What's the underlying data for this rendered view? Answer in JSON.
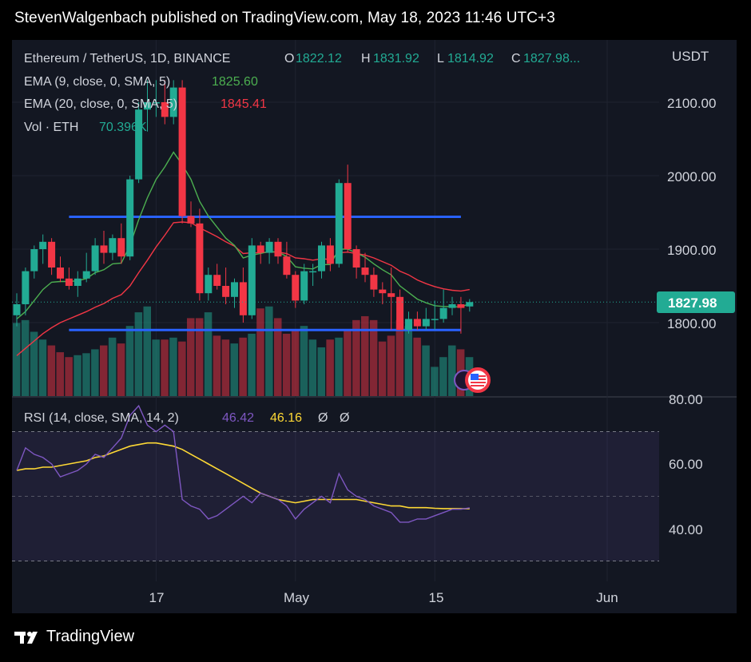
{
  "header": {
    "text": "StevenWalgenbach published on TradingView.com, May 18, 2023 11:46 UTC+3"
  },
  "legend": {
    "symbol": "Ethereum / TetherUS, 1D, BINANCE",
    "o_label": "O",
    "o_value": "1822.12",
    "h_label": "H",
    "h_value": "1831.92",
    "l_label": "L",
    "l_value": "1814.92",
    "c_label": "C",
    "c_value": "1827.98...",
    "ema9_label": "EMA (9, close, 0, SMA, 5)",
    "ema9_value": "1825.60",
    "ema20_label": "EMA (20, close, 0, SMA, 5)",
    "ema20_value": "1845.41",
    "vol_label": "Vol · ETH",
    "vol_value": "70.396K"
  },
  "rsi_legend": {
    "label": "RSI (14, close, SMA, 14, 2)",
    "rsi_value": "46.42",
    "sma_value": "46.16",
    "empty1": "Ø",
    "empty2": "Ø"
  },
  "axis": {
    "currency": "USDT",
    "price_ticks": [
      "2100.00",
      "2000.00",
      "1900.00",
      "1800.00"
    ],
    "price_label": "1827.98",
    "rsi_ticks": [
      "80.00",
      "60.00",
      "40.00"
    ],
    "x_ticks": [
      "17",
      "May",
      "15",
      "Jun"
    ]
  },
  "brand": {
    "name": "TradingView"
  },
  "colors": {
    "up": "#22ab94",
    "down": "#f23645",
    "ema9": "#4caf50",
    "ema20": "#f23645",
    "rsi": "#7e57c2",
    "rsi_sma": "#fdd835",
    "support": "#2962ff",
    "bg": "#131722"
  },
  "chart_data": [
    {
      "type": "candlestick",
      "title": "Ethereum / TetherUS, 1D, BINANCE",
      "ylim": [
        1730,
        2190
      ],
      "x_labels": [
        "17",
        "May",
        "15",
        "Jun"
      ],
      "candles": [
        {
          "o": 1810,
          "h": 1840,
          "l": 1795,
          "c": 1825
        },
        {
          "o": 1825,
          "h": 1875,
          "l": 1810,
          "c": 1870
        },
        {
          "o": 1870,
          "h": 1905,
          "l": 1860,
          "c": 1900
        },
        {
          "o": 1900,
          "h": 1920,
          "l": 1880,
          "c": 1910
        },
        {
          "o": 1910,
          "h": 1915,
          "l": 1865,
          "c": 1875
        },
        {
          "o": 1875,
          "h": 1890,
          "l": 1855,
          "c": 1860
        },
        {
          "o": 1860,
          "h": 1875,
          "l": 1845,
          "c": 1850
        },
        {
          "o": 1850,
          "h": 1870,
          "l": 1835,
          "c": 1860
        },
        {
          "o": 1860,
          "h": 1895,
          "l": 1855,
          "c": 1870
        },
        {
          "o": 1870,
          "h": 1915,
          "l": 1865,
          "c": 1905
        },
        {
          "o": 1905,
          "h": 1925,
          "l": 1880,
          "c": 1895
        },
        {
          "o": 1895,
          "h": 1920,
          "l": 1885,
          "c": 1915
        },
        {
          "o": 1915,
          "h": 1935,
          "l": 1880,
          "c": 1890
        },
        {
          "o": 1890,
          "h": 2000,
          "l": 1885,
          "c": 1995
        },
        {
          "o": 1995,
          "h": 2100,
          "l": 1990,
          "c": 2090
        },
        {
          "o": 2090,
          "h": 2130,
          "l": 2060,
          "c": 2100
        },
        {
          "o": 2100,
          "h": 2130,
          "l": 2080,
          "c": 2100
        },
        {
          "o": 2100,
          "h": 2130,
          "l": 2070,
          "c": 2080
        },
        {
          "o": 2080,
          "h": 2130,
          "l": 2070,
          "c": 2120
        },
        {
          "o": 2120,
          "h": 2130,
          "l": 1935,
          "c": 1945
        },
        {
          "o": 1945,
          "h": 1965,
          "l": 1930,
          "c": 1935
        },
        {
          "o": 1935,
          "h": 1955,
          "l": 1830,
          "c": 1840
        },
        {
          "o": 1840,
          "h": 1875,
          "l": 1830,
          "c": 1865
        },
        {
          "o": 1865,
          "h": 1880,
          "l": 1845,
          "c": 1850
        },
        {
          "o": 1850,
          "h": 1875,
          "l": 1825,
          "c": 1835
        },
        {
          "o": 1835,
          "h": 1860,
          "l": 1820,
          "c": 1855
        },
        {
          "o": 1855,
          "h": 1875,
          "l": 1800,
          "c": 1810
        },
        {
          "o": 1810,
          "h": 1915,
          "l": 1805,
          "c": 1905
        },
        {
          "o": 1905,
          "h": 1910,
          "l": 1880,
          "c": 1895
        },
        {
          "o": 1895,
          "h": 1915,
          "l": 1880,
          "c": 1910
        },
        {
          "o": 1910,
          "h": 1915,
          "l": 1880,
          "c": 1890
        },
        {
          "o": 1890,
          "h": 1910,
          "l": 1860,
          "c": 1865
        },
        {
          "o": 1865,
          "h": 1870,
          "l": 1820,
          "c": 1830
        },
        {
          "o": 1830,
          "h": 1880,
          "l": 1825,
          "c": 1870
        },
        {
          "o": 1870,
          "h": 1880,
          "l": 1850,
          "c": 1870
        },
        {
          "o": 1870,
          "h": 1910,
          "l": 1860,
          "c": 1905
        },
        {
          "o": 1905,
          "h": 1915,
          "l": 1870,
          "c": 1880
        },
        {
          "o": 1880,
          "h": 1995,
          "l": 1875,
          "c": 1990
        },
        {
          "o": 1990,
          "h": 2015,
          "l": 1895,
          "c": 1900
        },
        {
          "o": 1900,
          "h": 1905,
          "l": 1860,
          "c": 1875
        },
        {
          "o": 1875,
          "h": 1895,
          "l": 1855,
          "c": 1865
        },
        {
          "o": 1865,
          "h": 1875,
          "l": 1835,
          "c": 1845
        },
        {
          "o": 1845,
          "h": 1855,
          "l": 1825,
          "c": 1840
        },
        {
          "o": 1840,
          "h": 1875,
          "l": 1790,
          "c": 1835
        },
        {
          "o": 1835,
          "h": 1845,
          "l": 1790,
          "c": 1790
        },
        {
          "o": 1790,
          "h": 1815,
          "l": 1785,
          "c": 1805
        },
        {
          "o": 1805,
          "h": 1815,
          "l": 1790,
          "c": 1795
        },
        {
          "o": 1795,
          "h": 1820,
          "l": 1790,
          "c": 1805
        },
        {
          "o": 1805,
          "h": 1830,
          "l": 1790,
          "c": 1805
        },
        {
          "o": 1805,
          "h": 1845,
          "l": 1800,
          "c": 1820
        },
        {
          "o": 1820,
          "h": 1835,
          "l": 1810,
          "c": 1825
        },
        {
          "o": 1825,
          "h": 1835,
          "l": 1785,
          "c": 1820
        },
        {
          "o": 1822,
          "h": 1832,
          "l": 1815,
          "c": 1828
        }
      ],
      "ema9": [
        1805,
        1815,
        1830,
        1845,
        1855,
        1856,
        1856,
        1857,
        1860,
        1868,
        1872,
        1880,
        1881,
        1905,
        1940,
        1970,
        1995,
        2012,
        2032,
        2015,
        1995,
        1965,
        1945,
        1930,
        1915,
        1905,
        1888,
        1892,
        1894,
        1897,
        1896,
        1890,
        1876,
        1874,
        1873,
        1879,
        1879,
        1900,
        1900,
        1895,
        1889,
        1880,
        1872,
        1865,
        1850,
        1841,
        1832,
        1827,
        1823,
        1822,
        1822,
        1821,
        1826
      ],
      "ema20": [
        1755,
        1765,
        1775,
        1785,
        1793,
        1800,
        1805,
        1810,
        1815,
        1821,
        1826,
        1833,
        1838,
        1850,
        1868,
        1885,
        1903,
        1919,
        1936,
        1937,
        1936,
        1929,
        1923,
        1917,
        1910,
        1904,
        1894,
        1895,
        1895,
        1896,
        1896,
        1894,
        1888,
        1887,
        1885,
        1887,
        1886,
        1895,
        1896,
        1894,
        1892,
        1888,
        1883,
        1878,
        1870,
        1865,
        1858,
        1853,
        1849,
        1846,
        1844,
        1843,
        1845
      ],
      "volume": [
        75,
        78,
        66,
        58,
        52,
        45,
        40,
        42,
        44,
        48,
        52,
        60,
        54,
        72,
        86,
        92,
        58,
        58,
        60,
        56,
        80,
        80,
        86,
        62,
        58,
        54,
        60,
        64,
        90,
        92,
        80,
        64,
        68,
        72,
        58,
        50,
        58,
        60,
        68,
        78,
        82,
        78,
        56,
        62,
        78,
        72,
        60,
        52,
        30,
        40,
        52,
        48,
        40
      ],
      "support_levels": [
        1944,
        1790
      ]
    },
    {
      "type": "line",
      "title": "RSI (14, close, SMA, 14, 2)",
      "ylim": [
        30,
        80
      ],
      "bands": [
        70,
        50,
        30
      ],
      "series": [
        {
          "name": "RSI",
          "values": [
            58,
            65,
            63,
            62,
            60,
            56,
            57,
            58,
            60,
            63,
            62,
            65,
            68,
            75,
            78,
            72,
            70,
            72,
            70,
            49,
            47,
            46,
            43,
            44,
            46,
            48,
            50,
            48,
            51,
            50,
            49,
            47,
            43,
            46,
            48,
            50,
            48,
            57,
            52,
            50,
            49,
            47,
            46,
            45,
            42,
            42,
            43,
            43,
            44,
            45,
            46,
            46,
            46.42
          ]
        },
        {
          "name": "RSI SMA",
          "values": [
            58,
            58.5,
            58.5,
            59,
            59,
            59.5,
            60,
            60.5,
            61,
            62,
            62.5,
            63.5,
            64.5,
            65.5,
            66,
            66.5,
            66.5,
            66,
            65.5,
            64.5,
            63,
            61.5,
            60,
            58.5,
            57,
            55.5,
            54,
            52.5,
            51,
            50,
            49,
            48.5,
            48,
            48.5,
            49,
            49,
            49,
            49,
            49,
            49,
            48.5,
            48,
            47.5,
            47,
            47,
            46.5,
            46.5,
            46.5,
            46.3,
            46.2,
            46.2,
            46.16,
            46.16
          ]
        }
      ]
    }
  ]
}
